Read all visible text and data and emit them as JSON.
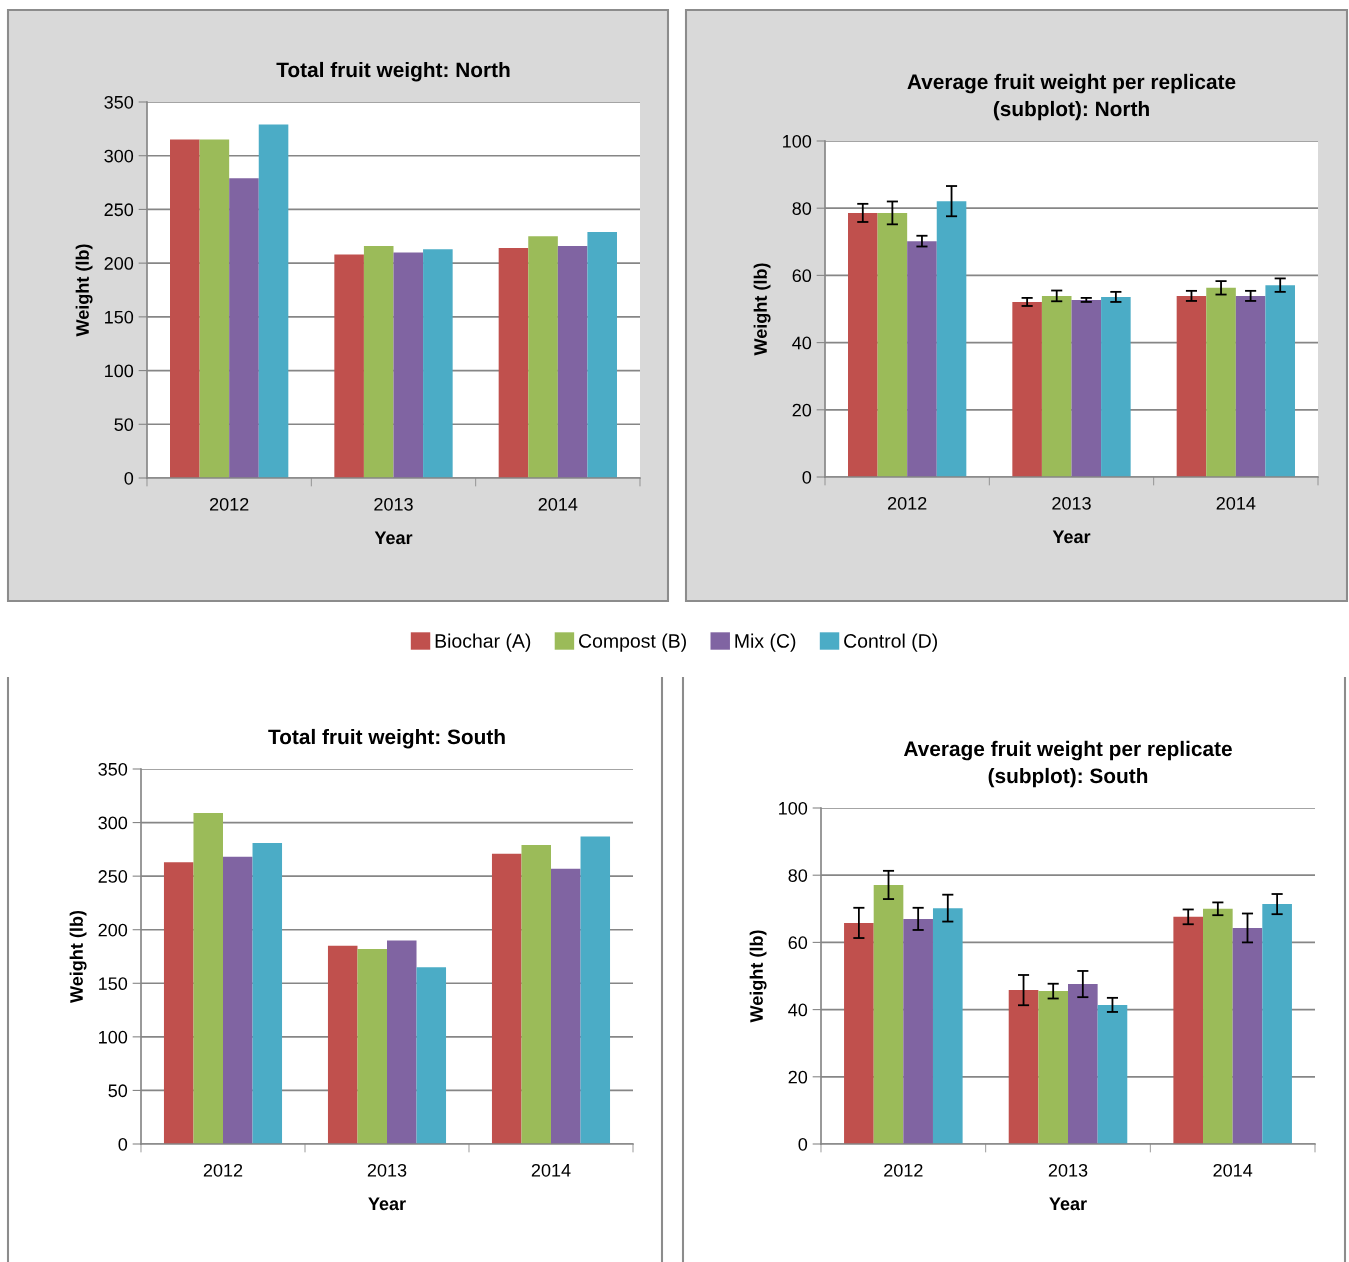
{
  "chart_data": [
    {
      "type": "bar",
      "title": "Total fruit weight: North",
      "xlabel": "Year",
      "ylabel": "Weight (lb)",
      "categories": [
        "2012",
        "2013",
        "2014"
      ],
      "ylim": [
        0,
        350
      ],
      "yticks": [
        0,
        50,
        100,
        150,
        200,
        250,
        300,
        350
      ],
      "grid": "y",
      "legend": "bottom",
      "series": [
        {
          "name": "Biochar (A)",
          "color": "#c0504d",
          "values": [
            315,
            208,
            214
          ]
        },
        {
          "name": "Compost (B)",
          "color": "#9bbb59",
          "values": [
            315,
            216,
            225
          ]
        },
        {
          "name": "Mix (C)",
          "color": "#8064a2",
          "values": [
            279,
            210,
            216
          ]
        },
        {
          "name": "Control (D)",
          "color": "#4bacc6",
          "values": [
            329,
            213,
            229
          ]
        }
      ]
    },
    {
      "type": "bar",
      "title": "Average fruit weight per replicate\n(subplot): North",
      "xlabel": "Year",
      "ylabel": "Weight (lb)",
      "categories": [
        "2012",
        "2013",
        "2014"
      ],
      "ylim": [
        0,
        100
      ],
      "yticks": [
        0,
        20,
        40,
        60,
        80,
        100
      ],
      "grid": "y",
      "series": [
        {
          "color": "#c0504d",
          "values": [
            78.6,
            52.1,
            53.9
          ],
          "errors": [
            2.7,
            1.2,
            1.5
          ]
        },
        {
          "color": "#9bbb59",
          "values": [
            78.6,
            53.9,
            56.3
          ],
          "errors": [
            3.4,
            1.6,
            2.0
          ]
        },
        {
          "color": "#8064a2",
          "values": [
            70.2,
            52.7,
            53.9
          ],
          "errors": [
            1.6,
            0.6,
            1.5
          ]
        },
        {
          "color": "#4bacc6",
          "values": [
            82.1,
            53.6,
            57.1
          ],
          "errors": [
            4.5,
            1.5,
            2.0
          ]
        }
      ]
    },
    {
      "type": "bar",
      "title": "Total fruit weight: South",
      "xlabel": "Year",
      "ylabel": "Weight (lb)",
      "categories": [
        "2012",
        "2013",
        "2014"
      ],
      "ylim": [
        0,
        350
      ],
      "yticks": [
        0,
        50,
        100,
        150,
        200,
        250,
        300,
        350
      ],
      "grid": "y",
      "series": [
        {
          "color": "#c0504d",
          "values": [
            263,
            185,
            271
          ]
        },
        {
          "color": "#9bbb59",
          "values": [
            309,
            182,
            279
          ]
        },
        {
          "color": "#8064a2",
          "values": [
            268,
            190,
            257
          ]
        },
        {
          "color": "#4bacc6",
          "values": [
            281,
            165,
            287
          ]
        }
      ]
    },
    {
      "type": "bar",
      "title": "Average fruit weight per replicate\n(subplot): South",
      "xlabel": "Year",
      "ylabel": "Weight (lb)",
      "categories": [
        "2012",
        "2013",
        "2014"
      ],
      "ylim": [
        0,
        100
      ],
      "yticks": [
        0,
        20,
        40,
        60,
        80,
        100
      ],
      "grid": "y",
      "series": [
        {
          "color": "#c0504d",
          "values": [
            65.8,
            45.8,
            67.6
          ],
          "errors": [
            4.5,
            4.5,
            2.2
          ]
        },
        {
          "color": "#9bbb59",
          "values": [
            77.1,
            45.5,
            70.0
          ],
          "errors": [
            4.2,
            2.2,
            1.9
          ]
        },
        {
          "color": "#8064a2",
          "values": [
            67.0,
            47.6,
            64.3
          ],
          "errors": [
            3.3,
            3.9,
            4.3
          ]
        },
        {
          "color": "#4bacc6",
          "values": [
            70.2,
            41.4,
            71.4
          ],
          "errors": [
            4.0,
            2.1,
            3.0
          ]
        }
      ]
    }
  ]
}
